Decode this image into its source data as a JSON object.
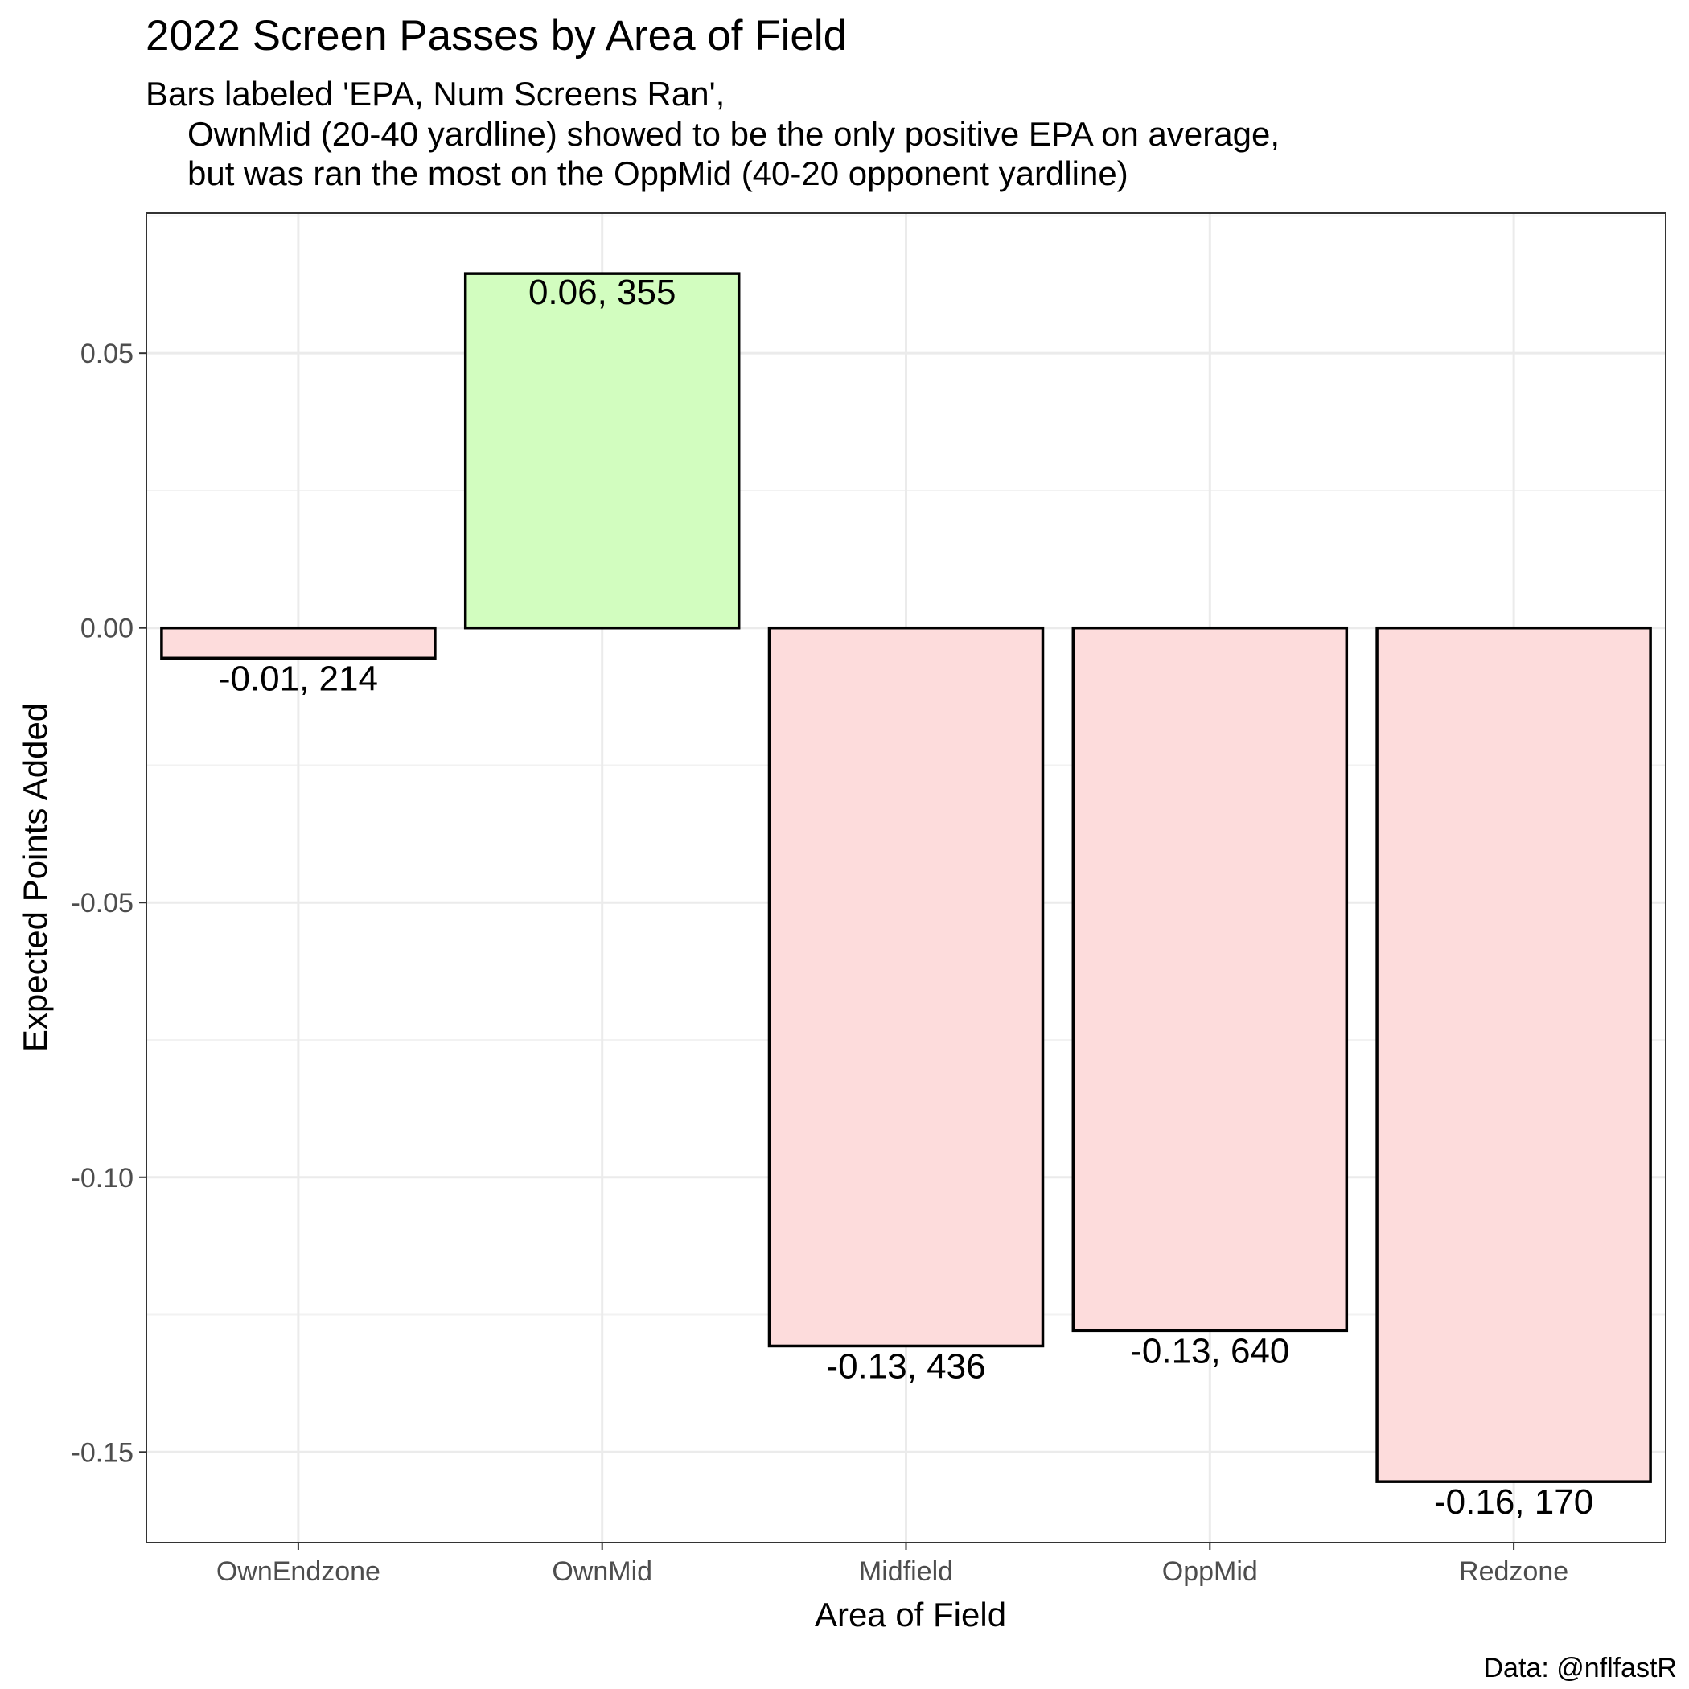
{
  "chart_data": {
    "type": "bar",
    "title": "2022 Screen Passes by Area of Field",
    "subtitle_lines": [
      "Bars labeled 'EPA, Num Screens Ran',",
      "OwnMid (20-40 yardline) showed to be the only positive EPA on average,",
      "but was ran the most on the OppMid (40-20 opponent yardline)"
    ],
    "xlabel": "Area of Field",
    "ylabel": "Expected Points Added",
    "caption": "Data: @nflfastR",
    "categories": [
      "OwnEndzone",
      "OwnMid",
      "Midfield",
      "OppMid",
      "Redzone"
    ],
    "values": [
      -0.0055,
      0.0645,
      -0.1307,
      -0.1279,
      -0.1554
    ],
    "labels": [
      "-0.01, 214",
      "0.06, 355",
      "-0.13, 436",
      "-0.13, 640",
      "-0.16, 170"
    ],
    "ylim": [
      -0.1665,
      0.0755
    ],
    "yticks": [
      0.05,
      0.0,
      -0.05,
      -0.1,
      -0.15
    ],
    "ytick_labels": [
      "0.05",
      "0.00",
      "-0.05",
      "-0.10",
      "-0.15"
    ],
    "grid": true,
    "legend": "none",
    "colors": {
      "positive": "#d2fdbf",
      "negative": "#fddcdc",
      "bar_outline": "#000000",
      "grid": "#ebebeb",
      "panel_border": "#333333"
    }
  }
}
